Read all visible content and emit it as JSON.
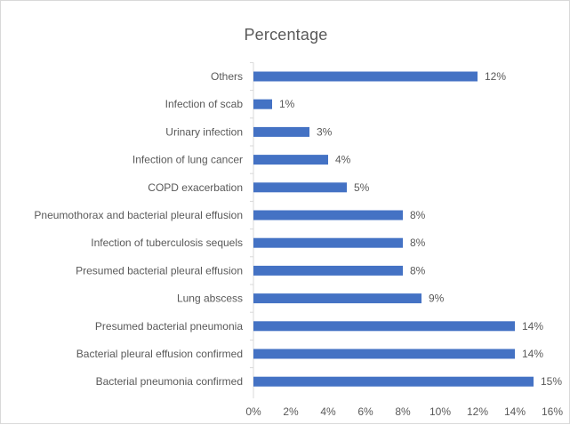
{
  "chart_data": {
    "type": "bar",
    "orientation": "horizontal",
    "title": "Percentage",
    "categories": [
      "Others",
      "Infection of scab",
      "Urinary infection",
      "Infection of lung cancer",
      "COPD exacerbation",
      "Pneumothorax and bacterial  pleural effusion",
      "Infection of tuberculosis sequels",
      "Presumed bacterial pleural effusion",
      "Lung abscess",
      "Presumed bacterial pneumonia",
      "Bacterial  pleural effusion confirmed",
      "Bacterial pneumonia confirmed"
    ],
    "values": [
      12,
      1,
      3,
      4,
      5,
      8,
      8,
      8,
      9,
      14,
      14,
      15
    ],
    "value_labels": [
      "12%",
      "1%",
      "3%",
      "4%",
      "5%",
      "8%",
      "8%",
      "8%",
      "9%",
      "14%",
      "14%",
      "15%"
    ],
    "x_ticks": [
      "0%",
      "2%",
      "4%",
      "6%",
      "8%",
      "10%",
      "12%",
      "14%",
      "16%"
    ],
    "xlim": [
      0,
      16
    ],
    "grid": false,
    "bar_color": "#4472c4"
  }
}
